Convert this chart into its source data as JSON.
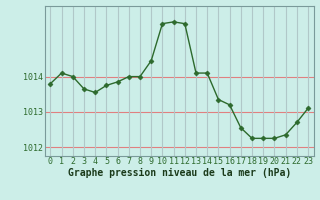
{
  "x": [
    0,
    1,
    2,
    3,
    4,
    5,
    6,
    7,
    8,
    9,
    10,
    11,
    12,
    13,
    14,
    15,
    16,
    17,
    18,
    19,
    20,
    21,
    22,
    23
  ],
  "y": [
    1013.8,
    1014.1,
    1014.0,
    1013.65,
    1013.55,
    1013.75,
    1013.85,
    1014.0,
    1014.0,
    1014.45,
    1015.5,
    1015.55,
    1015.5,
    1014.1,
    1014.1,
    1013.35,
    1013.2,
    1012.55,
    1012.25,
    1012.25,
    1012.25,
    1012.35,
    1012.7,
    1013.1
  ],
  "line_color": "#2d6a2d",
  "marker": "D",
  "marker_size": 2.5,
  "bg_color": "#cceee8",
  "grid_color_h": "#e08080",
  "grid_color_v": "#b0c8c8",
  "xlabel": "Graphe pression niveau de la mer (hPa)",
  "ylim": [
    1011.75,
    1016.0
  ],
  "xlim": [
    -0.5,
    23.5
  ],
  "yticks": [
    1012,
    1013,
    1014
  ],
  "xticks": [
    0,
    1,
    2,
    3,
    4,
    5,
    6,
    7,
    8,
    9,
    10,
    11,
    12,
    13,
    14,
    15,
    16,
    17,
    18,
    19,
    20,
    21,
    22,
    23
  ],
  "xlabel_fontsize": 7.0,
  "tick_fontsize": 6.0,
  "tick_color": "#2d6a2d",
  "xlabel_color": "#1a3a1a",
  "axis_color": "#7a9a9a"
}
